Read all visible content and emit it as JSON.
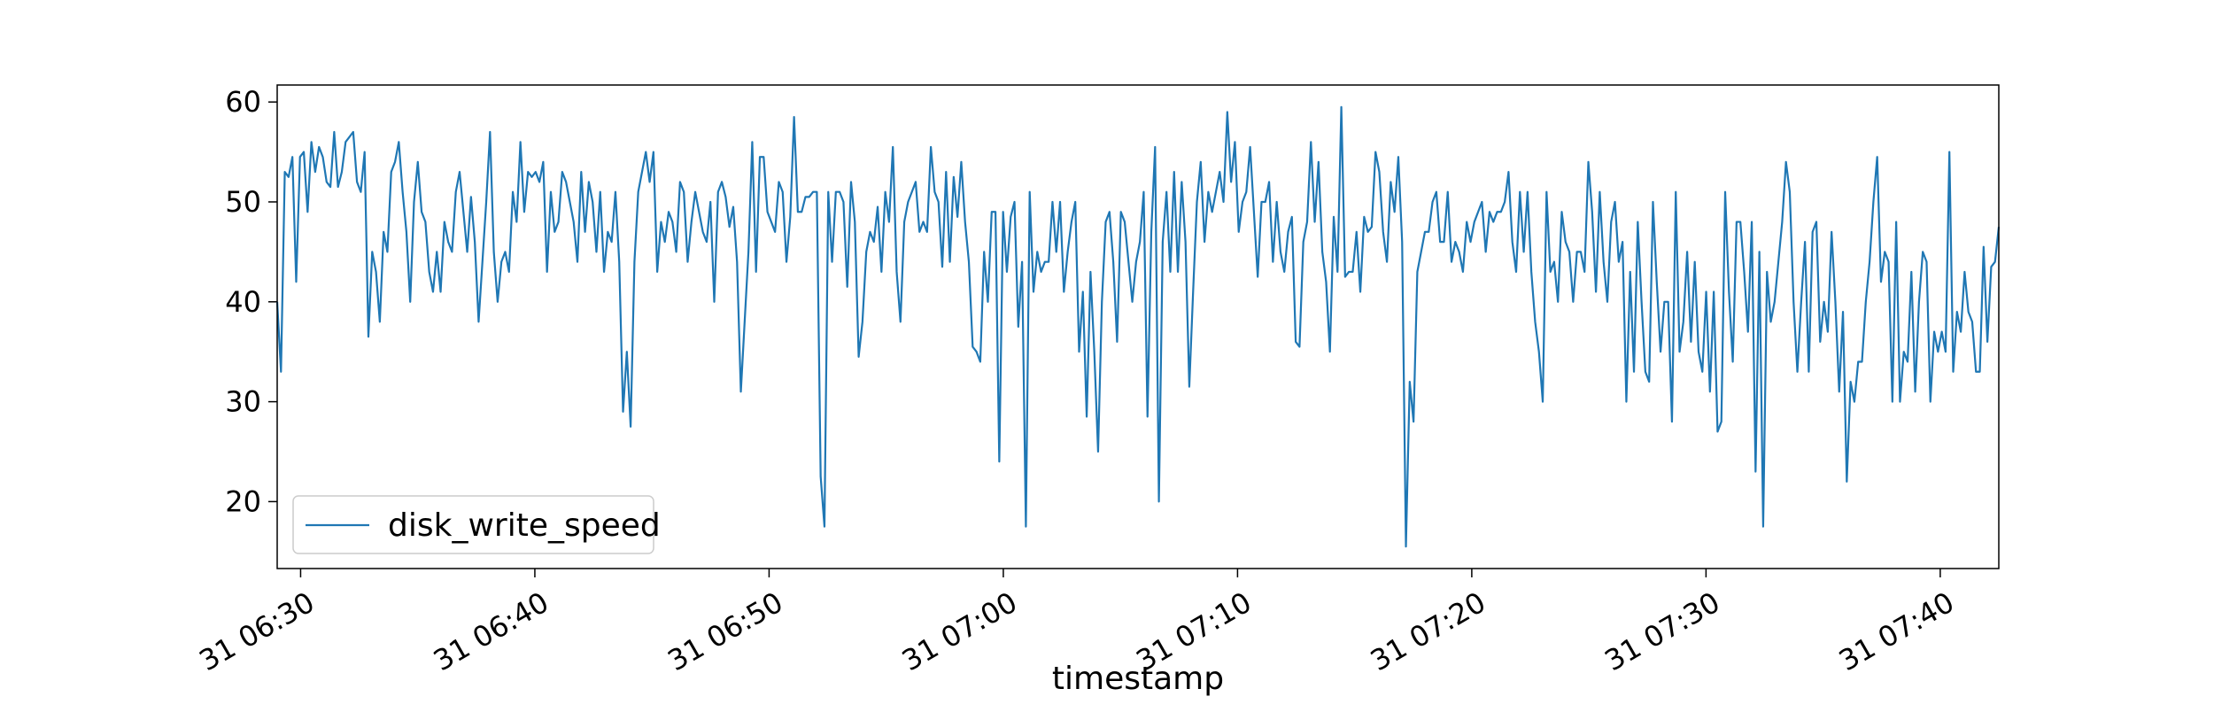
{
  "chart_data": {
    "type": "line",
    "title": "",
    "xlabel": "timestamp",
    "ylabel": "",
    "x_tick_labels": [
      "31 06:30",
      "31 06:40",
      "31 06:50",
      "31 07:00",
      "31 07:10",
      "31 07:20",
      "31 07:30",
      "31 07:40"
    ],
    "x_tick_minutes": [
      390,
      400,
      410,
      420,
      430,
      440,
      450,
      460
    ],
    "x_range_minutes": [
      389,
      462.5
    ],
    "y_ticks": [
      20,
      30,
      40,
      50,
      60
    ],
    "ylim": [
      13.3,
      61.7
    ],
    "grid": false,
    "legend_position": "lower-left",
    "series": [
      {
        "name": "disk_write_speed",
        "color": "#1f77b4",
        "x_start_minute": 389,
        "x_end_minute": 462.5,
        "values": [
          40,
          33,
          53,
          52.5,
          54.5,
          42,
          54.5,
          55,
          49,
          56,
          53,
          55.5,
          54.5,
          52,
          51.5,
          57,
          51.5,
          53,
          56,
          56.5,
          57,
          52,
          51,
          55,
          36.5,
          45,
          43,
          38,
          47,
          45,
          53,
          54,
          56,
          51,
          47,
          40,
          50,
          54,
          49,
          48,
          43,
          41,
          45,
          41,
          48,
          46,
          45,
          51,
          53,
          49,
          45,
          50.5,
          46,
          38,
          44,
          50,
          57,
          45,
          40,
          44,
          45,
          43,
          51,
          48,
          56,
          49,
          53,
          52.5,
          53,
          52,
          54,
          43,
          51,
          47,
          48,
          53,
          52,
          50,
          48,
          44,
          53,
          47,
          52,
          50,
          45,
          51,
          43,
          47,
          46,
          51,
          44,
          29,
          35,
          27.5,
          44,
          51,
          53,
          55,
          52,
          55,
          43,
          48,
          46,
          49,
          48,
          45,
          52,
          51,
          44,
          48,
          51,
          49,
          47,
          46,
          50,
          40,
          51,
          52,
          50.5,
          47.5,
          49.5,
          44,
          31,
          38,
          45,
          56,
          43,
          54.5,
          54.5,
          49,
          48,
          47,
          52,
          51,
          44,
          48.5,
          58.5,
          49,
          49,
          50.5,
          50.5,
          51,
          51,
          22.5,
          17.5,
          51,
          44,
          51,
          51,
          50,
          41.5,
          52,
          48,
          34.5,
          38,
          45,
          47,
          46,
          49.5,
          43,
          51,
          48,
          55.5,
          43,
          38,
          48,
          50,
          51,
          52,
          47,
          48,
          47,
          55.5,
          51,
          50,
          43.5,
          53,
          44,
          52.5,
          48.5,
          54,
          48,
          44,
          35.5,
          35,
          34,
          45,
          40,
          49,
          49,
          24,
          49,
          43,
          48.5,
          50,
          37.5,
          44,
          17.5,
          51,
          41,
          45,
          43,
          44,
          44,
          50,
          45,
          50,
          41,
          45,
          48,
          50,
          35,
          41,
          28.5,
          43,
          35,
          25,
          40,
          48,
          49,
          44,
          36,
          49,
          48,
          44,
          40,
          44,
          46,
          51,
          28.5,
          47,
          55.5,
          20,
          46,
          51,
          43,
          53,
          43,
          52,
          46,
          31.5,
          41,
          50,
          54,
          46,
          51,
          49,
          51,
          53,
          50,
          59,
          52,
          56,
          47,
          50,
          51,
          55.5,
          49,
          42.5,
          50,
          50,
          52,
          44,
          50,
          45,
          43,
          47,
          48.5,
          36,
          35.5,
          46,
          48,
          56,
          48,
          54,
          45,
          42,
          35,
          48.5,
          43,
          59.5,
          42.5,
          43,
          43,
          47,
          41,
          48.5,
          47,
          47.5,
          55,
          53,
          47,
          44,
          52,
          49,
          54.5,
          46,
          15.5,
          32,
          28,
          43,
          45,
          47,
          47,
          50,
          51,
          46,
          46,
          51,
          44,
          46,
          45,
          43,
          48,
          46,
          48,
          49,
          50,
          45,
          49,
          48,
          49,
          49,
          50,
          53,
          46,
          43,
          51,
          45,
          51,
          43,
          38,
          35,
          30,
          51,
          43,
          44,
          40,
          49,
          46,
          45,
          40,
          45,
          45,
          43,
          54,
          49,
          41,
          51,
          44,
          40,
          48,
          50,
          44,
          46,
          30,
          43,
          33,
          48,
          40,
          33,
          32,
          50,
          42,
          35,
          40,
          40,
          28,
          51,
          35,
          38,
          45,
          36,
          44,
          35,
          33,
          41,
          31,
          41,
          27,
          28,
          51,
          41,
          34,
          48,
          48,
          43,
          37,
          48,
          23,
          45,
          17.5,
          43,
          38,
          40,
          44,
          48,
          54,
          51,
          40,
          33,
          40,
          46,
          33,
          47,
          48,
          36,
          40,
          37,
          47,
          40,
          31,
          39,
          22,
          32,
          30,
          34,
          34,
          40,
          44,
          50,
          54.5,
          42,
          45,
          44,
          30,
          48,
          30,
          35,
          34,
          43,
          31,
          40,
          45,
          44,
          30,
          37,
          35,
          37,
          35,
          55,
          33,
          39,
          37,
          43,
          39,
          38,
          33,
          33,
          45.5,
          36,
          43.5,
          44,
          47.5
        ]
      }
    ]
  }
}
